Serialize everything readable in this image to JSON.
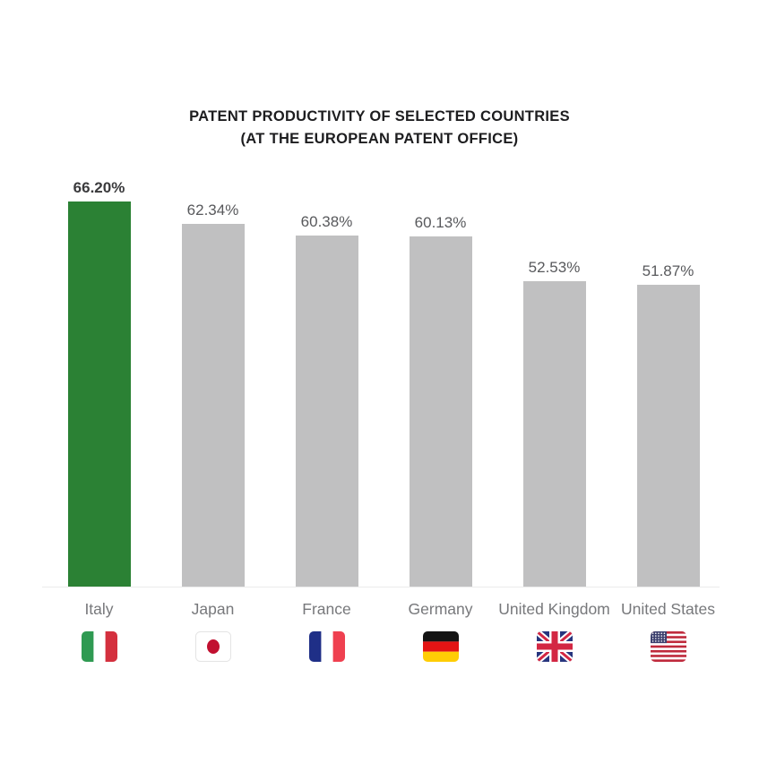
{
  "page": {
    "background": "#ffffff"
  },
  "chart_data": {
    "type": "bar",
    "title": "PATENT PRODUCTIVITY OF SELECTED COUNTRIES",
    "subtitle": "(AT THE EUROPEAN PATENT OFFICE)",
    "categories": [
      "Italy",
      "Japan",
      "France",
      "Germany",
      "United Kingdom",
      "United States"
    ],
    "values": [
      66.2,
      62.34,
      60.38,
      60.13,
      52.53,
      51.87
    ],
    "value_labels": [
      "66.20%",
      "62.34%",
      "60.38%",
      "60.13%",
      "52.53%",
      "51.87%"
    ],
    "highlight_index": 0,
    "xlabel": "",
    "ylabel": "",
    "ylim": [
      0,
      70
    ],
    "grid": false,
    "legend": "none",
    "colors": {
      "bar_default": "#c0c0c1",
      "bar_highlight": "#2b8134",
      "value_label": "#58595c",
      "value_label_highlight": "#3a3a3c",
      "country_label": "#77787b",
      "title": "#1d1d1f",
      "baseline": "#ebebeb"
    },
    "flag_icons": [
      "italy-flag-icon",
      "japan-flag-icon",
      "france-flag-icon",
      "germany-flag-icon",
      "united-kingdom-flag-icon",
      "united-states-flag-icon"
    ]
  }
}
